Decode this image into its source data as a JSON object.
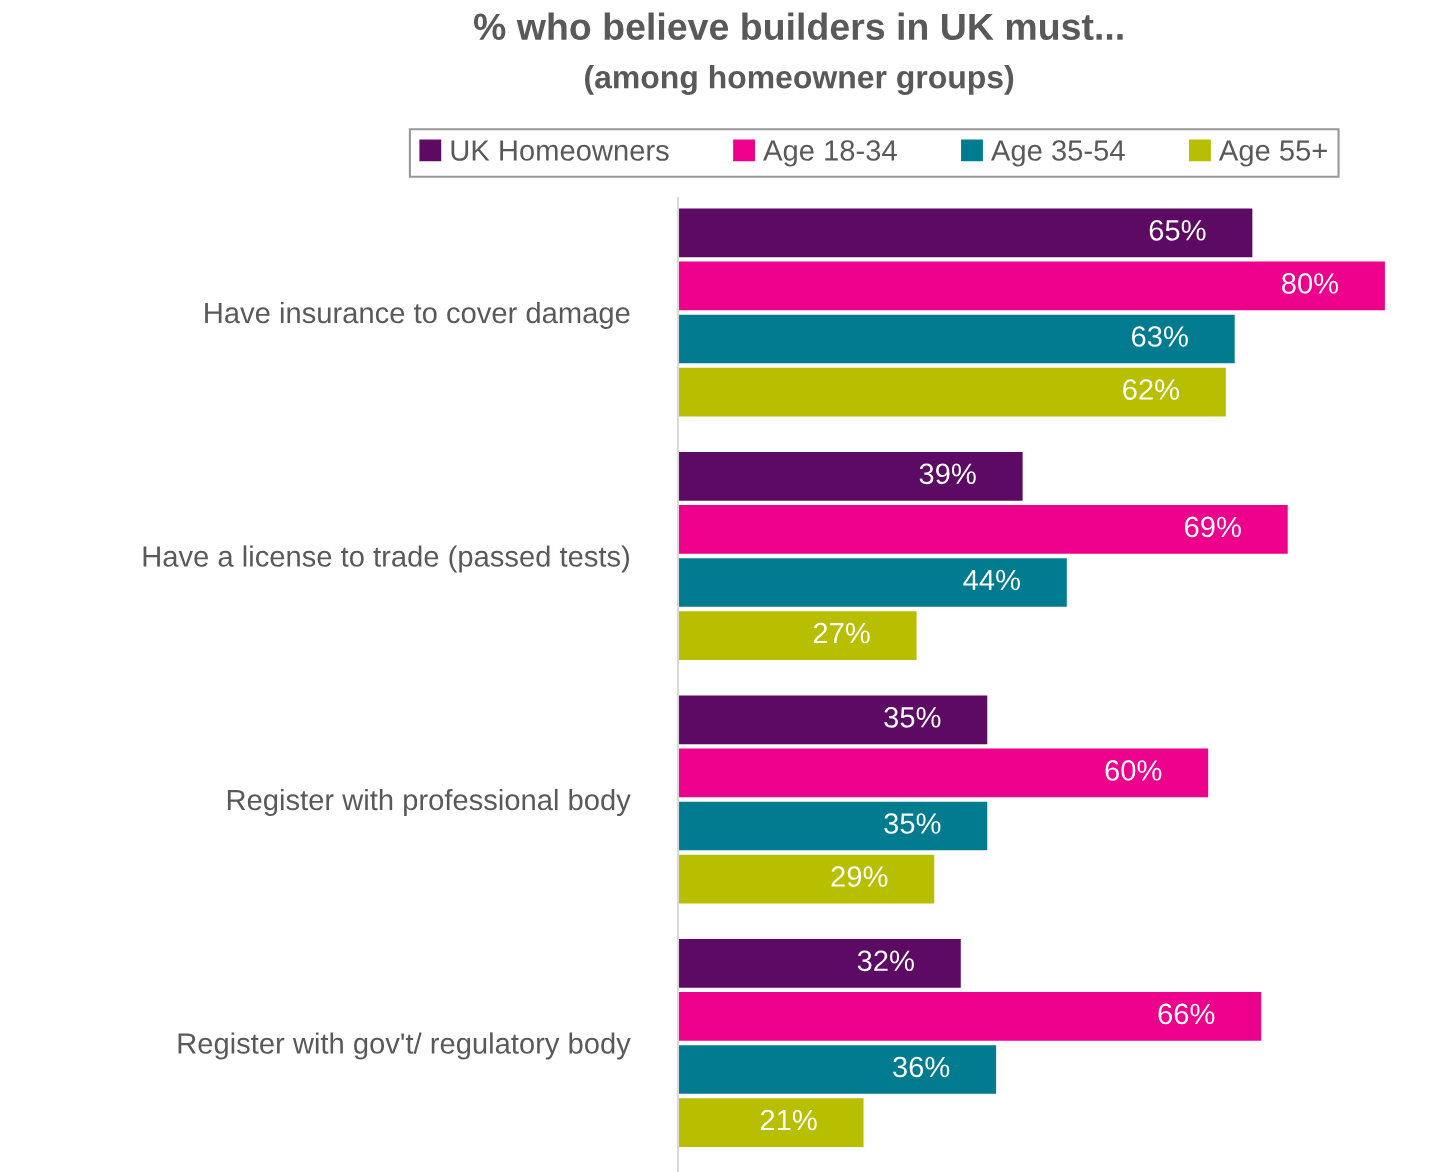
{
  "chart_data": {
    "type": "bar",
    "orientation": "horizontal",
    "title": "% who believe builders in UK must...",
    "subtitle": "(among homeowner groups)",
    "categories": [
      "Have insurance to cover damage",
      "Have a license to trade (passed tests)",
      "Register with professional body",
      "Register with gov't/ regulatory body"
    ],
    "series": [
      {
        "name": "UK Homeowners",
        "color": "#5c0a63",
        "values": [
          65,
          39,
          35,
          32
        ],
        "value_labels": [
          "65%",
          "39%",
          "35%",
          "32%"
        ]
      },
      {
        "name": "Age 18-34",
        "color": "#ec008c",
        "values": [
          80,
          69,
          60,
          66
        ],
        "value_labels": [
          "80%",
          "69%",
          "60%",
          "66%"
        ]
      },
      {
        "name": "Age 35-54",
        "color": "#007b8f",
        "values": [
          63,
          44,
          35,
          36
        ],
        "value_labels": [
          "63%",
          "44%",
          "35%",
          "36%"
        ]
      },
      {
        "name": "Age 55+",
        "color": "#b8bf00",
        "values": [
          62,
          27,
          29,
          21
        ],
        "value_labels": [
          "62%",
          "27%",
          "29%",
          "21%"
        ]
      }
    ],
    "legend": "top",
    "tick_labels": "y"
  }
}
